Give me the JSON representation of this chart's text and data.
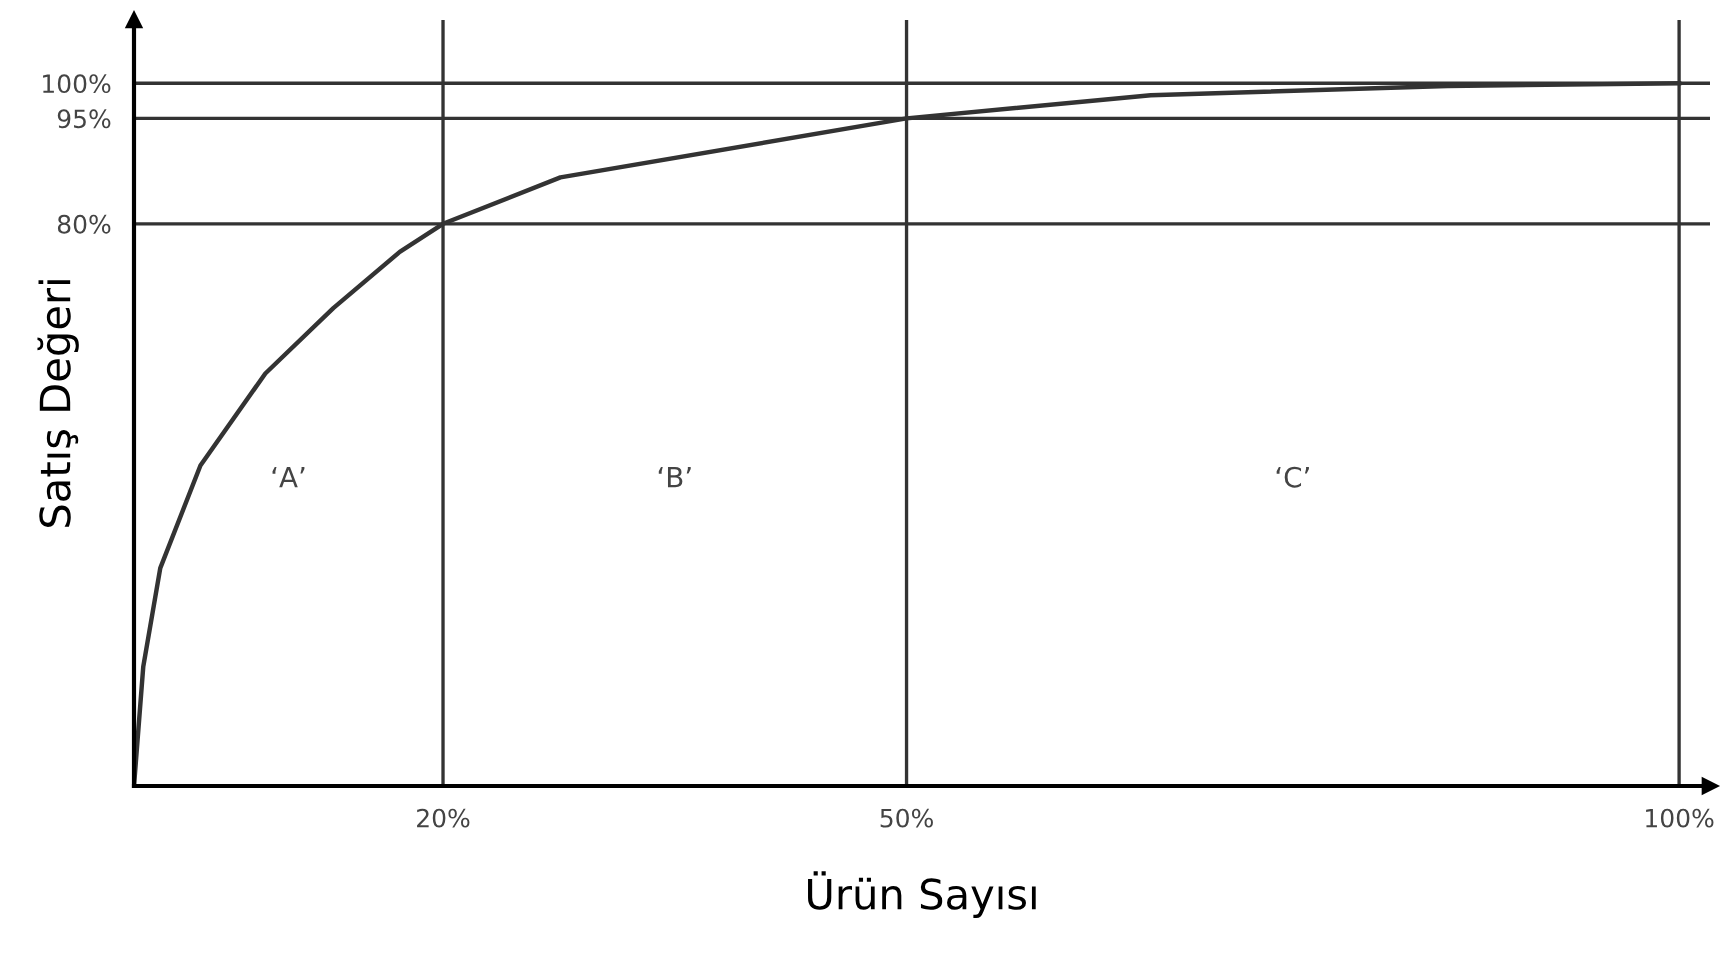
{
  "chart_data": {
    "type": "line",
    "xlabel": "Ürün Sayısı",
    "ylabel": "Satış Değeri",
    "x": [
      0,
      0.6,
      1.7,
      4.3,
      8.5,
      12.9,
      17.2,
      20,
      27.6,
      50,
      65.8,
      85,
      100
    ],
    "series": [
      {
        "color": "#333333",
        "values": [
          0,
          17,
          31,
          45.6,
          58.7,
          68,
          76,
          80,
          86.6,
          95,
          98.3,
          99.6,
          100
        ]
      }
    ],
    "xlim": [
      0,
      102
    ],
    "ylim": [
      0,
      109
    ],
    "xticks": [
      {
        "value": 20,
        "label": "20%"
      },
      {
        "value": 50,
        "label": "50%"
      },
      {
        "value": 100,
        "label": "100%"
      }
    ],
    "yticks": [
      {
        "value": 80,
        "label": "80%"
      },
      {
        "value": 95,
        "label": "95%"
      },
      {
        "value": 100,
        "label": "100%"
      }
    ],
    "ref_lines": [
      {
        "axis": "y",
        "value": 80,
        "color": "#333333",
        "line_style": "solid"
      },
      {
        "axis": "y",
        "value": 95,
        "color": "#333333",
        "line_style": "solid"
      },
      {
        "axis": "y",
        "value": 100,
        "color": "#333333",
        "line_style": "solid"
      },
      {
        "axis": "x",
        "value": 20,
        "color": "#333333",
        "line_style": "solid"
      },
      {
        "axis": "x",
        "value": 50,
        "color": "#333333",
        "line_style": "solid"
      },
      {
        "axis": "x",
        "value": 100,
        "color": "#333333",
        "line_style": "solid"
      }
    ],
    "annotations": [
      "‘A’",
      "‘B’",
      "‘C’"
    ],
    "legend": false,
    "marker": "none",
    "line_style": "solid"
  }
}
